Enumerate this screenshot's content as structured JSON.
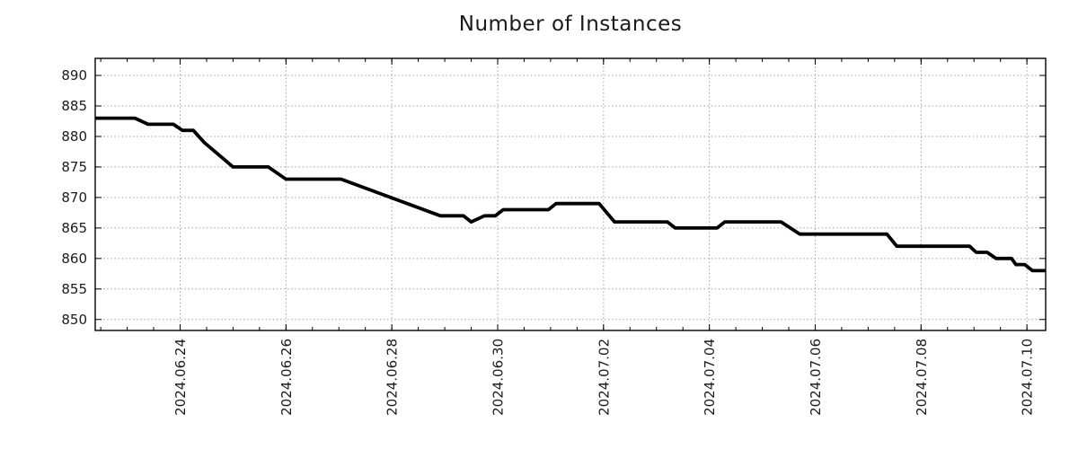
{
  "page": {
    "background": "#ffffff"
  },
  "chart_data": {
    "type": "line",
    "title": "Number of Instances",
    "legend": "none",
    "grid": true,
    "grid_color": "#a0a0a0",
    "axis_color": "#000000",
    "ylim": [
      848.2,
      892.8
    ],
    "y_ticks": [
      850,
      855,
      860,
      865,
      870,
      875,
      880,
      885,
      890
    ],
    "xlim": [
      "2024-06-22T09:30",
      "2024-07-10T08:30"
    ],
    "x_ticks_major": [
      {
        "t": "2024-06-24T00:00",
        "label": "2024.06.24"
      },
      {
        "t": "2024-06-26T00:00",
        "label": "2024.06.26"
      },
      {
        "t": "2024-06-28T00:00",
        "label": "2024.06.28"
      },
      {
        "t": "2024-06-30T00:00",
        "label": "2024.06.30"
      },
      {
        "t": "2024-07-02T00:00",
        "label": "2024.07.02"
      },
      {
        "t": "2024-07-04T00:00",
        "label": "2024.07.04"
      },
      {
        "t": "2024-07-06T00:00",
        "label": "2024.07.06"
      },
      {
        "t": "2024-07-08T00:00",
        "label": "2024.07.08"
      },
      {
        "t": "2024-07-10T00:00",
        "label": "2024.07.10"
      }
    ],
    "x_minor_interval_hours": 12,
    "series": [
      {
        "name": "instances",
        "color": "#000000",
        "points": [
          [
            "2024-06-22T09:30",
            883
          ],
          [
            "2024-06-23T03:30",
            883
          ],
          [
            "2024-06-23T09:30",
            882
          ],
          [
            "2024-06-23T21:00",
            882
          ],
          [
            "2024-06-24T01:00",
            881
          ],
          [
            "2024-06-24T06:00",
            881
          ],
          [
            "2024-06-24T11:00",
            879
          ],
          [
            "2024-06-25T00:00",
            875
          ],
          [
            "2024-06-25T16:00",
            875
          ],
          [
            "2024-06-26T00:00",
            873
          ],
          [
            "2024-06-27T01:00",
            873
          ],
          [
            "2024-06-28T22:00",
            867
          ],
          [
            "2024-06-29T08:30",
            867
          ],
          [
            "2024-06-29T12:00",
            866
          ],
          [
            "2024-06-29T18:00",
            867
          ],
          [
            "2024-06-29T23:00",
            867
          ],
          [
            "2024-06-30T02:30",
            868
          ],
          [
            "2024-06-30T23:00",
            868
          ],
          [
            "2024-07-01T02:30",
            869
          ],
          [
            "2024-07-01T22:00",
            869
          ],
          [
            "2024-07-02T05:00",
            866
          ],
          [
            "2024-07-03T05:00",
            866
          ],
          [
            "2024-07-03T08:30",
            865
          ],
          [
            "2024-07-04T03:30",
            865
          ],
          [
            "2024-07-04T07:00",
            866
          ],
          [
            "2024-07-05T08:30",
            866
          ],
          [
            "2024-07-05T17:00",
            864
          ],
          [
            "2024-07-07T08:30",
            864
          ],
          [
            "2024-07-07T13:00",
            862
          ],
          [
            "2024-07-08T22:00",
            862
          ],
          [
            "2024-07-09T01:00",
            861
          ],
          [
            "2024-07-09T06:00",
            861
          ],
          [
            "2024-07-09T10:00",
            860
          ],
          [
            "2024-07-09T17:00",
            860
          ],
          [
            "2024-07-09T19:00",
            859
          ],
          [
            "2024-07-09T23:00",
            859
          ],
          [
            "2024-07-10T02:30",
            858
          ],
          [
            "2024-07-10T08:30",
            858
          ]
        ]
      }
    ]
  }
}
